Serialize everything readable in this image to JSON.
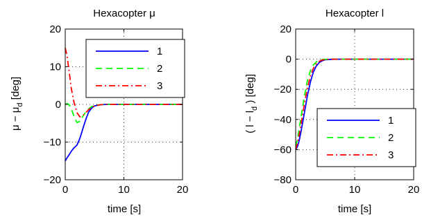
{
  "chart_data": [
    {
      "type": "line",
      "title": "Hexacopter μ",
      "xlabel": "time [s]",
      "ylabel_main": "μ − μ",
      "ylabel_sub": "d",
      "ylabel_unit": " [deg]",
      "xlim": [
        0,
        20
      ],
      "ylim": [
        -20,
        20
      ],
      "xticks": [
        0,
        10,
        20
      ],
      "yticks": [
        -20,
        -10,
        0,
        10,
        20
      ],
      "grid": true,
      "legend_position": "top-right",
      "series": [
        {
          "name": "1",
          "color": "#0000ff",
          "style": "solid",
          "x": [
            0,
            0.3,
            0.6,
            1.0,
            1.5,
            2.0,
            2.5,
            3.0,
            3.5,
            4.0,
            4.5,
            5.0,
            5.5,
            6.0,
            7.0,
            8.0,
            10,
            15,
            20
          ],
          "y": [
            -15,
            -14.2,
            -13.5,
            -12.5,
            -11.5,
            -10.8,
            -9.0,
            -6.5,
            -4.0,
            -2.0,
            -1.0,
            -0.4,
            -0.2,
            -0.1,
            0,
            0,
            0,
            0,
            0
          ]
        },
        {
          "name": "2",
          "color": "#00ff00",
          "style": "dashed",
          "x": [
            0,
            0.3,
            0.6,
            1.0,
            1.5,
            2.0,
            2.5,
            3.0,
            3.5,
            4.0,
            4.5,
            5.0,
            6.0,
            7.0,
            10,
            15,
            20
          ],
          "y": [
            0,
            0.2,
            0,
            -1.0,
            -3.2,
            -4.8,
            -4.5,
            -3.2,
            -2.0,
            -1.2,
            -0.6,
            -0.3,
            -0.1,
            0,
            0,
            0,
            0
          ]
        },
        {
          "name": "3",
          "color": "#ff0000",
          "style": "dashdot",
          "x": [
            0,
            0.3,
            0.6,
            1.0,
            1.5,
            2.0,
            2.5,
            3.0,
            3.5,
            4.0,
            4.5,
            5.0,
            6.0,
            7.0,
            10,
            15,
            20
          ],
          "y": [
            15,
            13.0,
            9.5,
            4.5,
            0.5,
            -2.2,
            -3.3,
            -3.0,
            -2.2,
            -1.4,
            -0.8,
            -0.4,
            -0.1,
            0,
            0,
            0,
            0
          ]
        }
      ]
    },
    {
      "type": "line",
      "title": "Hexacopter l",
      "xlabel": "time [s]",
      "ylabel_main": "( l − l",
      "ylabel_sub": "d",
      "ylabel_unit": " ) [deg]",
      "xlim": [
        0,
        20
      ],
      "ylim": [
        -80,
        20
      ],
      "xticks": [
        0,
        10,
        20
      ],
      "yticks": [
        -80,
        -60,
        -40,
        -20,
        0,
        20
      ],
      "grid": true,
      "legend_position": "bottom-right",
      "series": [
        {
          "name": "1",
          "color": "#0000ff",
          "style": "solid",
          "x": [
            0,
            0.3,
            0.6,
            1.0,
            1.5,
            2.0,
            2.5,
            3.0,
            3.5,
            4.0,
            4.5,
            5.0,
            6.0,
            7.0,
            10,
            15,
            20
          ],
          "y": [
            -60,
            -58,
            -54,
            -46,
            -35,
            -24,
            -15,
            -8.5,
            -4.5,
            -2.2,
            -1.0,
            -0.4,
            -0.1,
            0,
            0,
            0,
            0
          ]
        },
        {
          "name": "2",
          "color": "#00ff00",
          "style": "dashed",
          "x": [
            0,
            0.3,
            0.6,
            1.0,
            1.5,
            2.0,
            2.5,
            3.0,
            3.5,
            4.0,
            4.5,
            5.0,
            6.0,
            10,
            15,
            20
          ],
          "y": [
            -58,
            -53,
            -46,
            -36,
            -24,
            -14,
            -7.5,
            -3.8,
            -1.8,
            -0.8,
            -0.3,
            -0.1,
            0,
            0,
            0,
            0
          ]
        },
        {
          "name": "3",
          "color": "#ff0000",
          "style": "dashdot",
          "x": [
            0,
            0.3,
            0.6,
            1.0,
            1.5,
            2.0,
            2.5,
            3.0,
            3.5,
            4.0,
            4.5,
            5.0,
            6.0,
            10,
            15,
            20
          ],
          "y": [
            -60,
            -56,
            -50,
            -41,
            -29,
            -19,
            -11,
            -6.0,
            -3.0,
            -1.4,
            -0.6,
            -0.2,
            0,
            0,
            0,
            0
          ]
        }
      ]
    }
  ]
}
